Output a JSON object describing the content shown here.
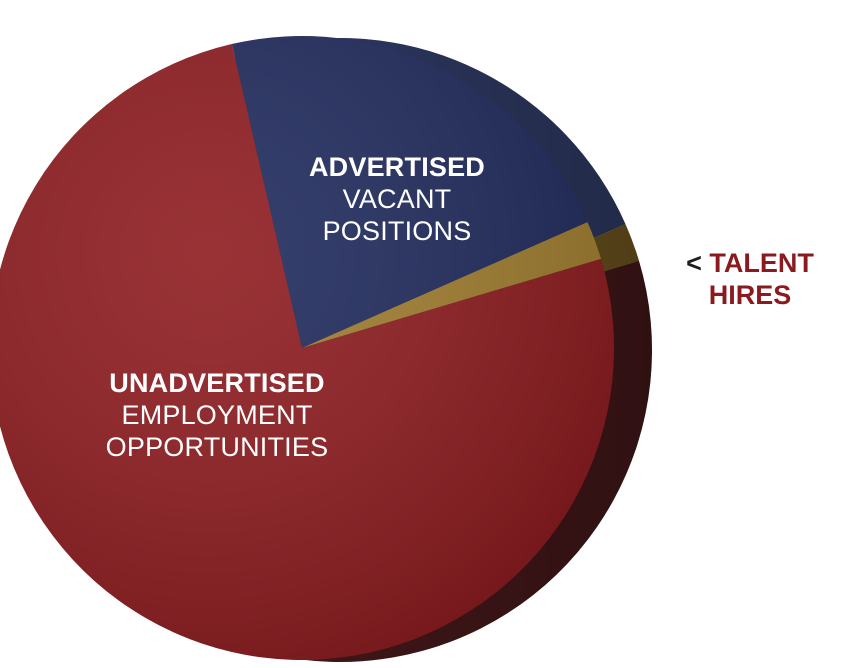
{
  "chart_data": {
    "type": "pie",
    "title": "",
    "slices": [
      {
        "key": "advertised",
        "label_bold": "ADVERTISED",
        "label_rest": "VACANT POSITIONS",
        "label_lines": [
          "VACANT",
          "POSITIONS"
        ],
        "value": 22,
        "color": "#1f2a5c"
      },
      {
        "key": "talent",
        "label_prefix": "<",
        "label_bold": "TALENT",
        "label_rest": "HIRES",
        "value": 2,
        "color": "#a07d2e"
      },
      {
        "key": "unadvertised",
        "label_bold": "UNADVERTISED",
        "label_rest": "EMPLOYMENT OPPORTUNITIES",
        "label_lines": [
          "EMPLOYMENT",
          "OPPORTUNITIES"
        ],
        "value": 76,
        "color": "#8d1b1f"
      }
    ],
    "legend": "none",
    "style": "3d-tilted-pie"
  },
  "colors": {
    "advertised_top": "#1f2a5c",
    "advertised_side": "#34406e",
    "talent_top": "#a07d2e",
    "talent_side": "#7a5e22",
    "unadvertised_top": "#8d1b1f",
    "unadvertised_side": "#4a1a1c",
    "talent_label": "#8b1a1f"
  }
}
